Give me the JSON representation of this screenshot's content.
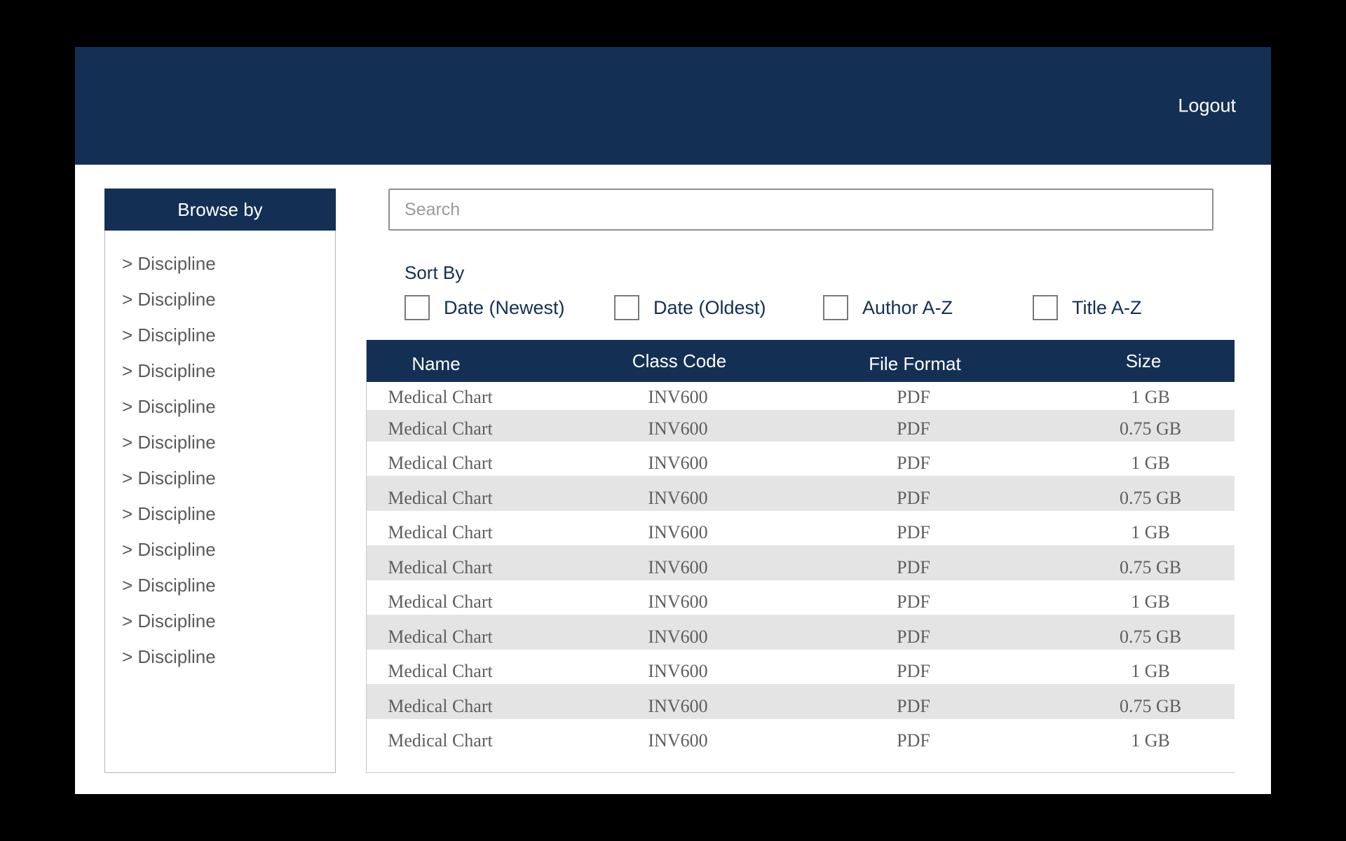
{
  "header": {
    "logout_label": "Logout"
  },
  "sidebar": {
    "title": "Browse by",
    "items": [
      "> Discipline",
      "> Discipline",
      "> Discipline",
      "> Discipline",
      "> Discipline",
      "> Discipline",
      "> Discipline",
      "> Discipline",
      "> Discipline",
      "> Discipline",
      "> Discipline",
      "> Discipline"
    ]
  },
  "search": {
    "placeholder": "Search",
    "value": ""
  },
  "sort": {
    "label": "Sort By",
    "options": [
      {
        "label": "Date (Newest)",
        "checked": false
      },
      {
        "label": "Date (Oldest)",
        "checked": false
      },
      {
        "label": "Author A-Z",
        "checked": false
      },
      {
        "label": "Title A-Z",
        "checked": false
      }
    ]
  },
  "table": {
    "columns": [
      "Name",
      "Class Code",
      "File Format",
      "Size"
    ],
    "rows": [
      [
        "Medical Chart",
        "INV600",
        "PDF",
        "1 GB"
      ],
      [
        "Medical Chart",
        "INV600",
        "PDF",
        "0.75 GB"
      ],
      [
        "Medical Chart",
        "INV600",
        "PDF",
        "1 GB"
      ],
      [
        "Medical Chart",
        "INV600",
        "PDF",
        "0.75 GB"
      ],
      [
        "Medical Chart",
        "INV600",
        "PDF",
        "1 GB"
      ],
      [
        "Medical Chart",
        "INV600",
        "PDF",
        "0.75 GB"
      ],
      [
        "Medical Chart",
        "INV600",
        "PDF",
        "1 GB"
      ],
      [
        "Medical Chart",
        "INV600",
        "PDF",
        "0.75 GB"
      ],
      [
        "Medical Chart",
        "INV600",
        "PDF",
        "1 GB"
      ],
      [
        "Medical Chart",
        "INV600",
        "PDF",
        "0.75 GB"
      ],
      [
        "Medical Chart",
        "INV600",
        "PDF",
        "1 GB"
      ]
    ]
  },
  "colors": {
    "brand_navy": "#142f54",
    "stripe_gray": "#e4e4e4",
    "background": "#000000"
  }
}
